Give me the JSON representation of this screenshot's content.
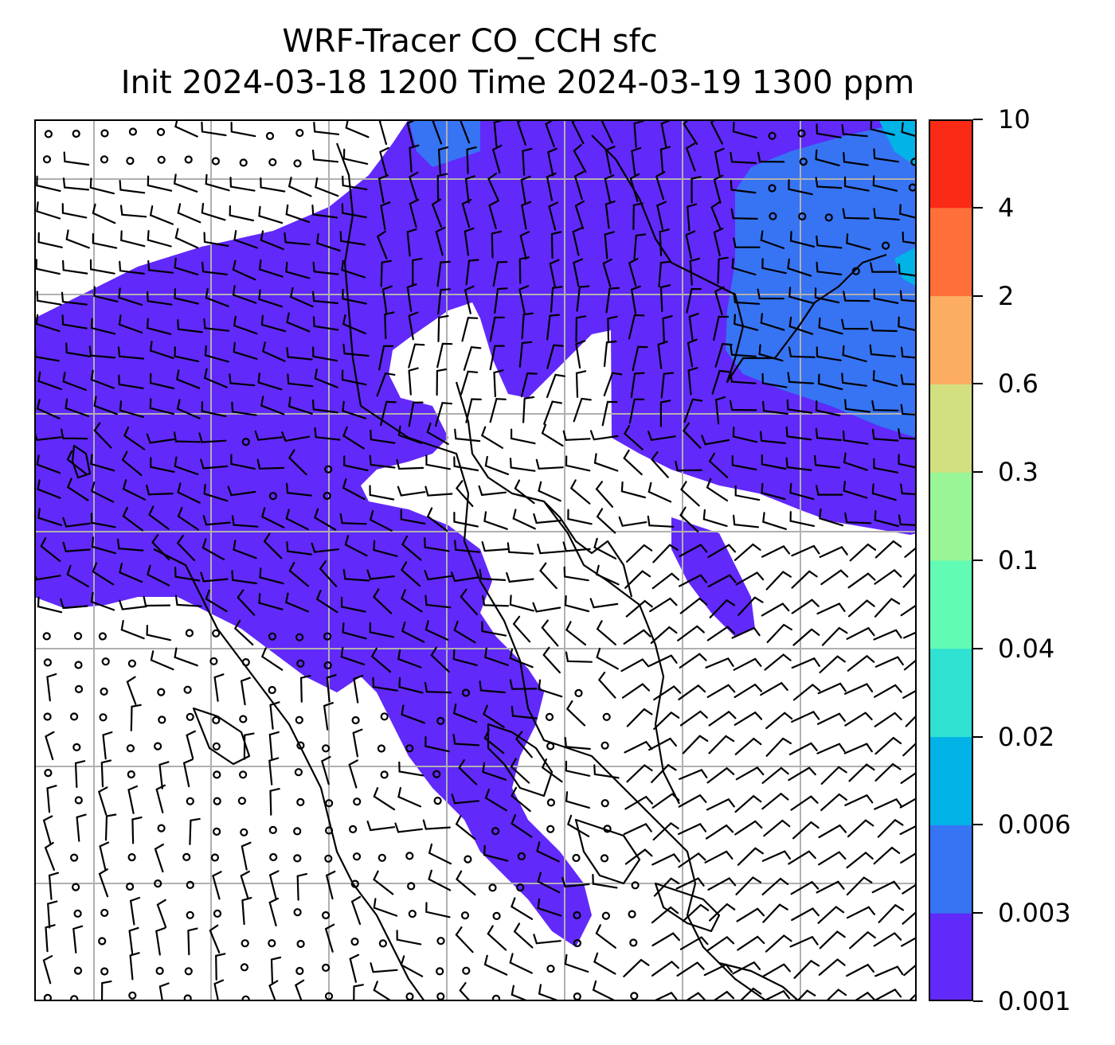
{
  "title": {
    "line1": "WRF-Tracer CO_CCH sfc",
    "line2": "Init 2024-03-18 1200 Time 2024-03-19 1300 ppm"
  },
  "colorbar": {
    "levels": [
      {
        "label": "0.001",
        "color": "#6129fa"
      },
      {
        "label": "0.003",
        "color": "#3674f4"
      },
      {
        "label": "0.006",
        "color": "#02b3e8"
      },
      {
        "label": "0.02",
        "color": "#2ee1d1"
      },
      {
        "label": "0.04",
        "color": "#62fbb5"
      },
      {
        "label": "0.1",
        "color": "#99f697"
      },
      {
        "label": "0.3",
        "color": "#d4df80"
      },
      {
        "label": "0.6",
        "color": "#fcad62"
      },
      {
        "label": "2",
        "color": "#ff6f3a"
      },
      {
        "label": "4",
        "color": "#fb2a16"
      },
      {
        "label": "10",
        "color": null
      }
    ]
  },
  "map": {
    "gridlines": true,
    "gridline_color": "#b0b0b0",
    "coastline_color": "#000000",
    "wind_symbol": "wind-barb",
    "calm_symbol": "calm-circle"
  }
}
